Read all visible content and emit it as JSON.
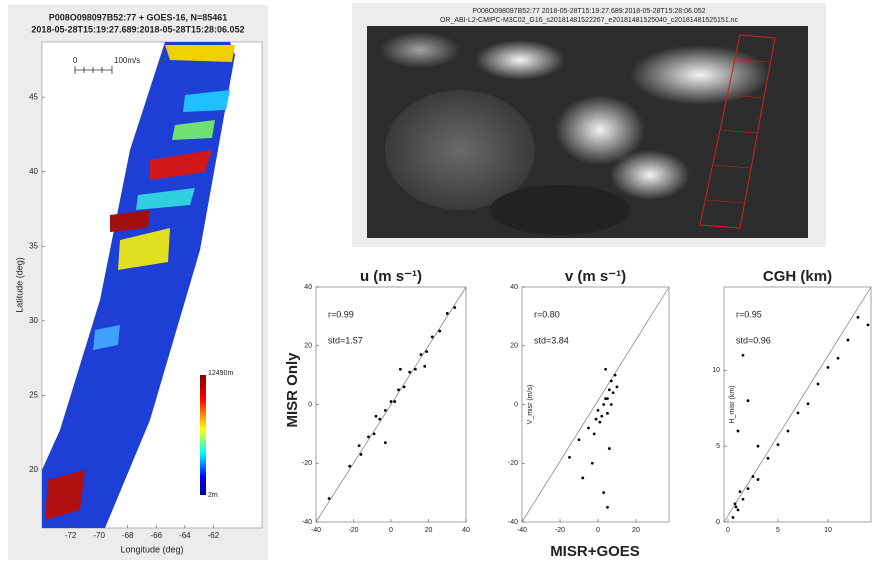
{
  "chart_data": [
    {
      "type": "map",
      "title_lines": [
        "P008O098097B52:77 + GOES-16, N=85461",
        "2018-05-28T15:19:27.689:2018-05-28T15:28:06.052"
      ],
      "x_label": "Longitude (deg)",
      "y_label": "Latitude (deg)",
      "xlim": [
        -74,
        -58.6
      ],
      "xticks": [
        -72,
        -70,
        -68,
        -66,
        -64,
        -62
      ],
      "ylim": [
        16.1,
        48.7
      ],
      "yticks": [
        20,
        25,
        30,
        35,
        40,
        45
      ],
      "scale_bar_labels": [
        "0",
        "100m/s"
      ],
      "colorbar_labels": [
        "12490m",
        "2m"
      ]
    },
    {
      "type": "scatter",
      "title": "u (m s⁻¹)",
      "color": "#000000",
      "xlim": [
        -40,
        40
      ],
      "xticks": [
        -40,
        -20,
        0,
        20,
        40
      ],
      "ylim": [
        -40,
        40
      ],
      "yticks": [
        -40,
        -20,
        0,
        20,
        40
      ],
      "annotations": [
        "r=0.99",
        "std=1.57"
      ],
      "x": [
        -33,
        -22,
        -16,
        -12,
        -9,
        -6,
        -3,
        0,
        2,
        4,
        7,
        10,
        13,
        16,
        19,
        22,
        26,
        30,
        34,
        -17,
        -8,
        5,
        -3,
        18
      ],
      "values": [
        -32,
        -21,
        -17,
        -11,
        -10,
        -5,
        -2,
        1,
        1,
        5,
        6,
        11,
        12,
        17,
        18,
        23,
        25,
        31,
        33,
        -14,
        -4,
        12,
        -13,
        13
      ]
    },
    {
      "type": "scatter",
      "title": "v (m s⁻¹)",
      "color": "#000000",
      "y_label": "V_misr (m/s)",
      "xlim": [
        -40,
        37.4
      ],
      "xticks": [
        -40,
        -20,
        0,
        20
      ],
      "ylim": [
        -40,
        40
      ],
      "yticks": [
        -40,
        -20,
        0,
        20,
        40
      ],
      "annotations": [
        "r=0.80",
        "std=3.84"
      ],
      "x": [
        -15,
        -10,
        -8,
        -5,
        -3,
        -1,
        0,
        2,
        3,
        4,
        5,
        6,
        7,
        8,
        9,
        10,
        3,
        5,
        -2,
        6,
        4,
        7,
        1,
        5
      ],
      "values": [
        -18,
        -12,
        -25,
        -8,
        -20,
        -5,
        -2,
        -4,
        0,
        2,
        -3,
        5,
        8,
        4,
        10,
        6,
        -30,
        -35,
        -10,
        -15,
        12,
        0,
        -6,
        2
      ]
    },
    {
      "type": "scatter",
      "title": "CGH (km)",
      "color": "#000000",
      "y_label": "H_misr (km)",
      "xlim": [
        -0.4,
        14.3
      ],
      "xticks": [
        0,
        5,
        10
      ],
      "ylim": [
        0,
        15.5
      ],
      "yticks": [
        0,
        5,
        10
      ],
      "annotations": [
        "r=0.95",
        "std=0.96"
      ],
      "x": [
        0.5,
        0.8,
        1,
        1.2,
        1.5,
        2,
        2.5,
        3,
        4,
        5,
        6,
        7,
        8,
        9,
        10,
        11,
        12,
        13,
        1,
        2,
        3,
        1.5,
        14,
        0.7
      ],
      "values": [
        0.3,
        1,
        0.8,
        2,
        1.5,
        2.2,
        3,
        2.8,
        4.2,
        5.1,
        6,
        7.2,
        7.8,
        9.1,
        10.2,
        10.8,
        12,
        13.5,
        6,
        8,
        5,
        11,
        13,
        1.2
      ]
    }
  ],
  "image_panel": {
    "title_lines": [
      "P008O098097B52:77 2018-05-28T15:19:27.689:2018-05-28T15:28:06.052",
      "OR_ABI-L2-CMIPC-M3C02_G16_s20181481522267_e20181481525040_c20181481525151.nc"
    ]
  },
  "figure_labels": {
    "row": "MISR Only",
    "column": "MISR+GOES"
  }
}
